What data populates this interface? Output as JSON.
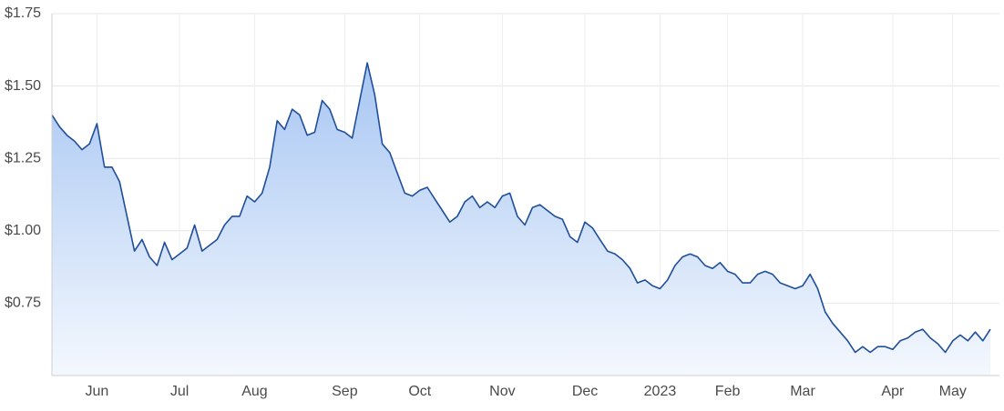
{
  "chart_data": {
    "type": "area",
    "categories": [
      null,
      null,
      null,
      null,
      null,
      null,
      "Jun",
      null,
      null,
      null,
      null,
      null,
      null,
      null,
      null,
      null,
      null,
      "Jul",
      null,
      null,
      null,
      null,
      null,
      null,
      null,
      null,
      null,
      "Aug",
      null,
      null,
      null,
      null,
      null,
      null,
      null,
      null,
      null,
      null,
      null,
      "Sep",
      null,
      null,
      null,
      null,
      null,
      null,
      null,
      null,
      null,
      "Oct",
      null,
      null,
      null,
      null,
      null,
      null,
      null,
      null,
      null,
      null,
      "Nov",
      null,
      null,
      null,
      null,
      null,
      null,
      null,
      null,
      null,
      null,
      "Dec",
      null,
      null,
      null,
      null,
      null,
      null,
      null,
      null,
      null,
      "2023",
      null,
      null,
      null,
      null,
      null,
      null,
      null,
      null,
      "Feb",
      null,
      null,
      null,
      null,
      null,
      null,
      null,
      null,
      null,
      "Mar",
      null,
      null,
      null,
      null,
      null,
      null,
      null,
      null,
      null,
      null,
      null,
      "Apr",
      null,
      null,
      null,
      null,
      null,
      null,
      null,
      "May",
      null,
      null,
      null,
      null,
      null
    ],
    "series": [
      {
        "color": "#1f4e9a",
        "values": [
          1.4,
          1.36,
          1.33,
          1.31,
          1.28,
          1.3,
          1.37,
          1.22,
          1.22,
          1.17,
          1.05,
          0.93,
          0.97,
          0.91,
          0.88,
          0.96,
          0.9,
          0.92,
          0.94,
          1.02,
          0.93,
          0.95,
          0.97,
          1.02,
          1.05,
          1.05,
          1.12,
          1.1,
          1.13,
          1.22,
          1.38,
          1.35,
          1.42,
          1.4,
          1.33,
          1.34,
          1.45,
          1.42,
          1.35,
          1.34,
          1.32,
          1.45,
          1.58,
          1.47,
          1.3,
          1.27,
          1.2,
          1.13,
          1.12,
          1.14,
          1.15,
          1.11,
          1.07,
          1.03,
          1.05,
          1.1,
          1.12,
          1.08,
          1.1,
          1.08,
          1.12,
          1.13,
          1.05,
          1.02,
          1.08,
          1.09,
          1.07,
          1.05,
          1.04,
          0.98,
          0.96,
          1.03,
          1.01,
          0.97,
          0.93,
          0.92,
          0.9,
          0.87,
          0.82,
          0.83,
          0.81,
          0.8,
          0.83,
          0.88,
          0.91,
          0.92,
          0.91,
          0.88,
          0.87,
          0.89,
          0.86,
          0.85,
          0.82,
          0.82,
          0.85,
          0.86,
          0.85,
          0.82,
          0.81,
          0.8,
          0.81,
          0.85,
          0.8,
          0.72,
          0.68,
          0.65,
          0.62,
          0.58,
          0.6,
          0.58,
          0.6,
          0.6,
          0.59,
          0.62,
          0.63,
          0.65,
          0.66,
          0.63,
          0.61,
          0.58,
          0.62,
          0.64,
          0.62,
          0.65,
          0.62,
          0.66
        ]
      }
    ],
    "ylim": [
      0.5,
      1.75
    ],
    "yticks": [
      {
        "value": 0.75,
        "label": "$0.75"
      },
      {
        "value": 1.0,
        "label": "$1.00"
      },
      {
        "value": 1.25,
        "label": "$1.25"
      },
      {
        "value": 1.5,
        "label": "$1.50"
      },
      {
        "value": 1.75,
        "label": "$1.75"
      }
    ],
    "grid": true
  }
}
